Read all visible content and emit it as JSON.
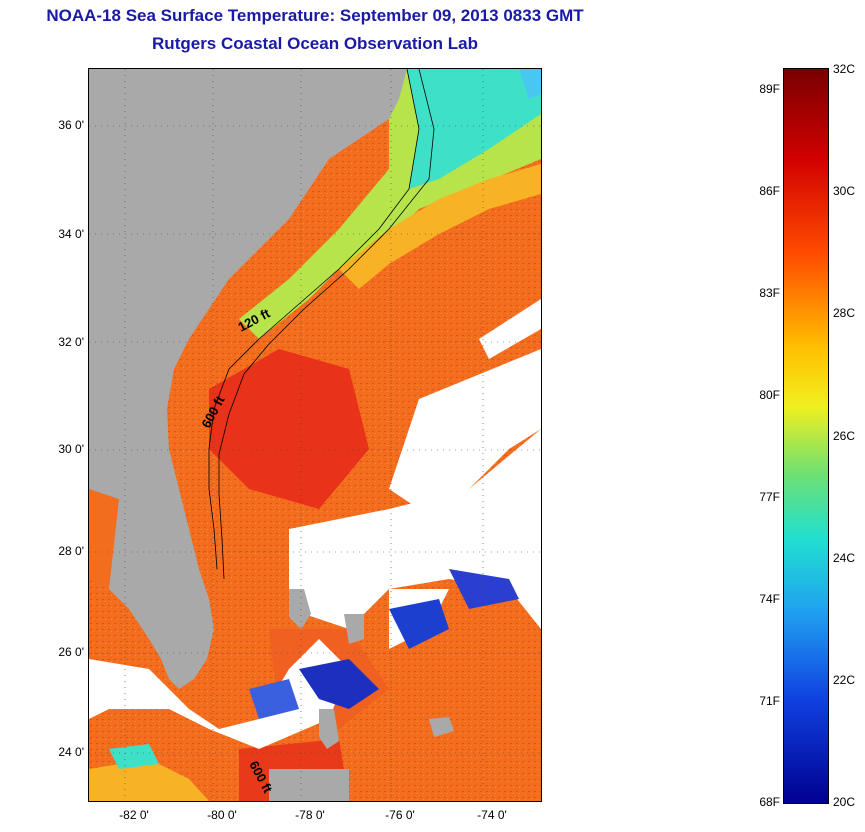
{
  "title": {
    "line1": "NOAA-18 Sea Surface Temperature:  September 09, 2013 0833 GMT",
    "line2": "Rutgers Coastal Ocean Observation Lab"
  },
  "map": {
    "lat_ticks": [
      "36 0'",
      "34 0'",
      "32 0'",
      "30 0'",
      "28 0'",
      "26 0'",
      "24 0'"
    ],
    "lon_ticks": [
      "-82 0'",
      "-80 0'",
      "-78 0'",
      "-76 0'",
      "-74 0'"
    ],
    "contour_labels": [
      "120 ft",
      "600 ft",
      "600 ft"
    ],
    "colors": {
      "land": "#a9a9a9",
      "cloud": "#ffffff",
      "warm": "#f26a1b",
      "hot": "#e8321a",
      "mild": "#f7a020",
      "cool": "#c8e83a",
      "cold": "#1c2fbf"
    }
  },
  "colorbar": {
    "fahrenheit_labels": [
      "89F",
      "86F",
      "83F",
      "80F",
      "77F",
      "74F",
      "71F",
      "68F"
    ],
    "celsius_labels": [
      "32C",
      "30C",
      "28C",
      "26C",
      "24C",
      "22C",
      "20C"
    ],
    "range_celsius": [
      20,
      32
    ],
    "colormap": "jet"
  }
}
